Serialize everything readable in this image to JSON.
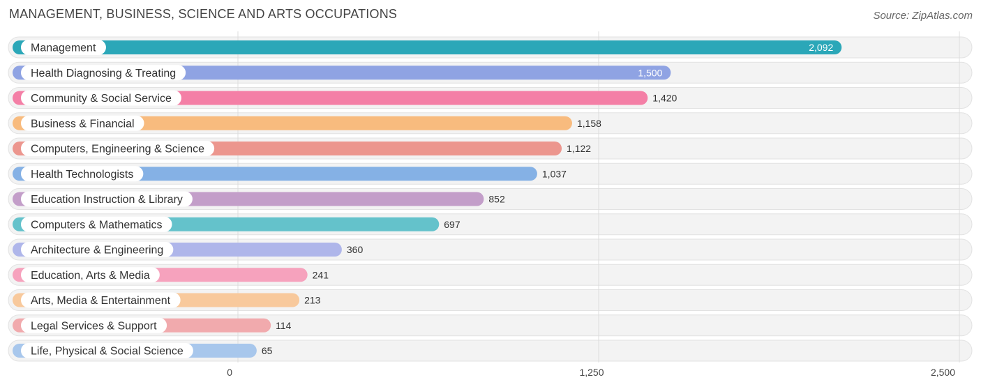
{
  "header": {
    "title": "MANAGEMENT, BUSINESS, SCIENCE AND ARTS OCCUPATIONS",
    "source": "Source: ZipAtlas.com"
  },
  "chart_data": {
    "type": "bar",
    "orientation": "horizontal",
    "title": "MANAGEMENT, BUSINESS, SCIENCE AND ARTS OCCUPATIONS",
    "xlim": [
      0,
      2500
    ],
    "ticks": [
      0,
      1250,
      2500
    ],
    "tick_labels": [
      "0",
      "1,250",
      "2,500"
    ],
    "grid": true,
    "categories": [
      "Management",
      "Health Diagnosing & Treating",
      "Community & Social Service",
      "Business & Financial",
      "Computers, Engineering & Science",
      "Health Technologists",
      "Education Instruction & Library",
      "Computers & Mathematics",
      "Architecture & Engineering",
      "Education, Arts & Media",
      "Arts, Media & Entertainment",
      "Legal Services & Support",
      "Life, Physical & Social Science"
    ],
    "values": [
      2092,
      1500,
      1420,
      1158,
      1122,
      1037,
      852,
      697,
      360,
      241,
      213,
      114,
      65
    ],
    "value_labels": [
      "2,092",
      "1,500",
      "1,420",
      "1,158",
      "1,122",
      "1,037",
      "852",
      "697",
      "360",
      "241",
      "213",
      "114",
      "65"
    ],
    "colors": [
      "#2ba7b8",
      "#8fa3e3",
      "#f47fa6",
      "#f8bb7e",
      "#ec968e",
      "#85b1e5",
      "#c39ec9",
      "#64c2cb",
      "#afb6ea",
      "#f6a2bd",
      "#f8c99c",
      "#f1aaad",
      "#a8c7ec"
    ]
  }
}
